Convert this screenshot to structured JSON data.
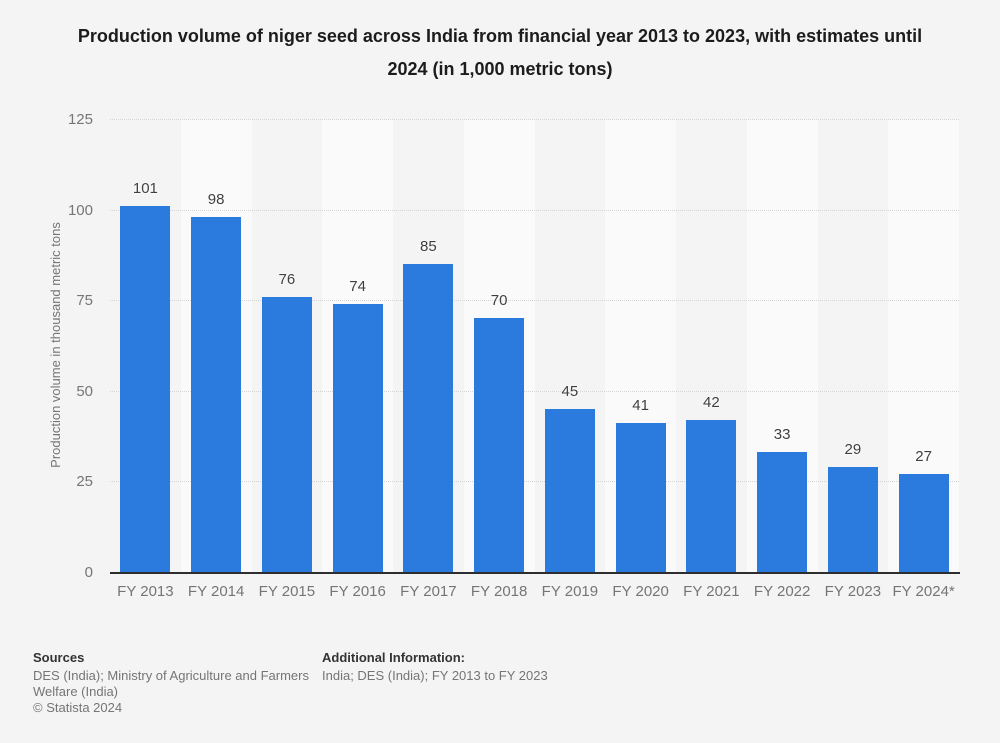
{
  "title": "Production volume of niger seed across India from financial year 2013 to 2023, with estimates until 2024 (in 1,000 metric tons)",
  "chart_data": {
    "type": "bar",
    "categories": [
      "FY 2013",
      "FY 2014",
      "FY 2015",
      "FY 2016",
      "FY 2017",
      "FY 2018",
      "FY 2019",
      "FY 2020",
      "FY 2021",
      "FY 2022",
      "FY 2023",
      "FY 2024*"
    ],
    "values": [
      101,
      98,
      76,
      74,
      85,
      70,
      45,
      41,
      42,
      33,
      29,
      27
    ],
    "title": "Production volume of niger seed across India from financial year 2013 to 2023, with estimates until 2024 (in 1,000 metric tons)",
    "xlabel": "",
    "ylabel": "Production volume in thousand metric tons",
    "ylim": [
      0,
      125
    ],
    "yticks": [
      0,
      25,
      50,
      75,
      100,
      125
    ],
    "grid": "horizontal-dotted",
    "legend": "none",
    "bar_color": "#2b7ade",
    "band_color_odd": "#f4f4f4",
    "band_color_even": "#fafafa"
  },
  "footer": {
    "sources_heading": "Sources",
    "sources_body": "DES (India); Ministry of Agriculture and Farmers Welfare (India)",
    "copyright": "© Statista 2024",
    "additional_heading": "Additional Information:",
    "additional_body": "India; DES (India); FY 2013 to FY 2023"
  }
}
